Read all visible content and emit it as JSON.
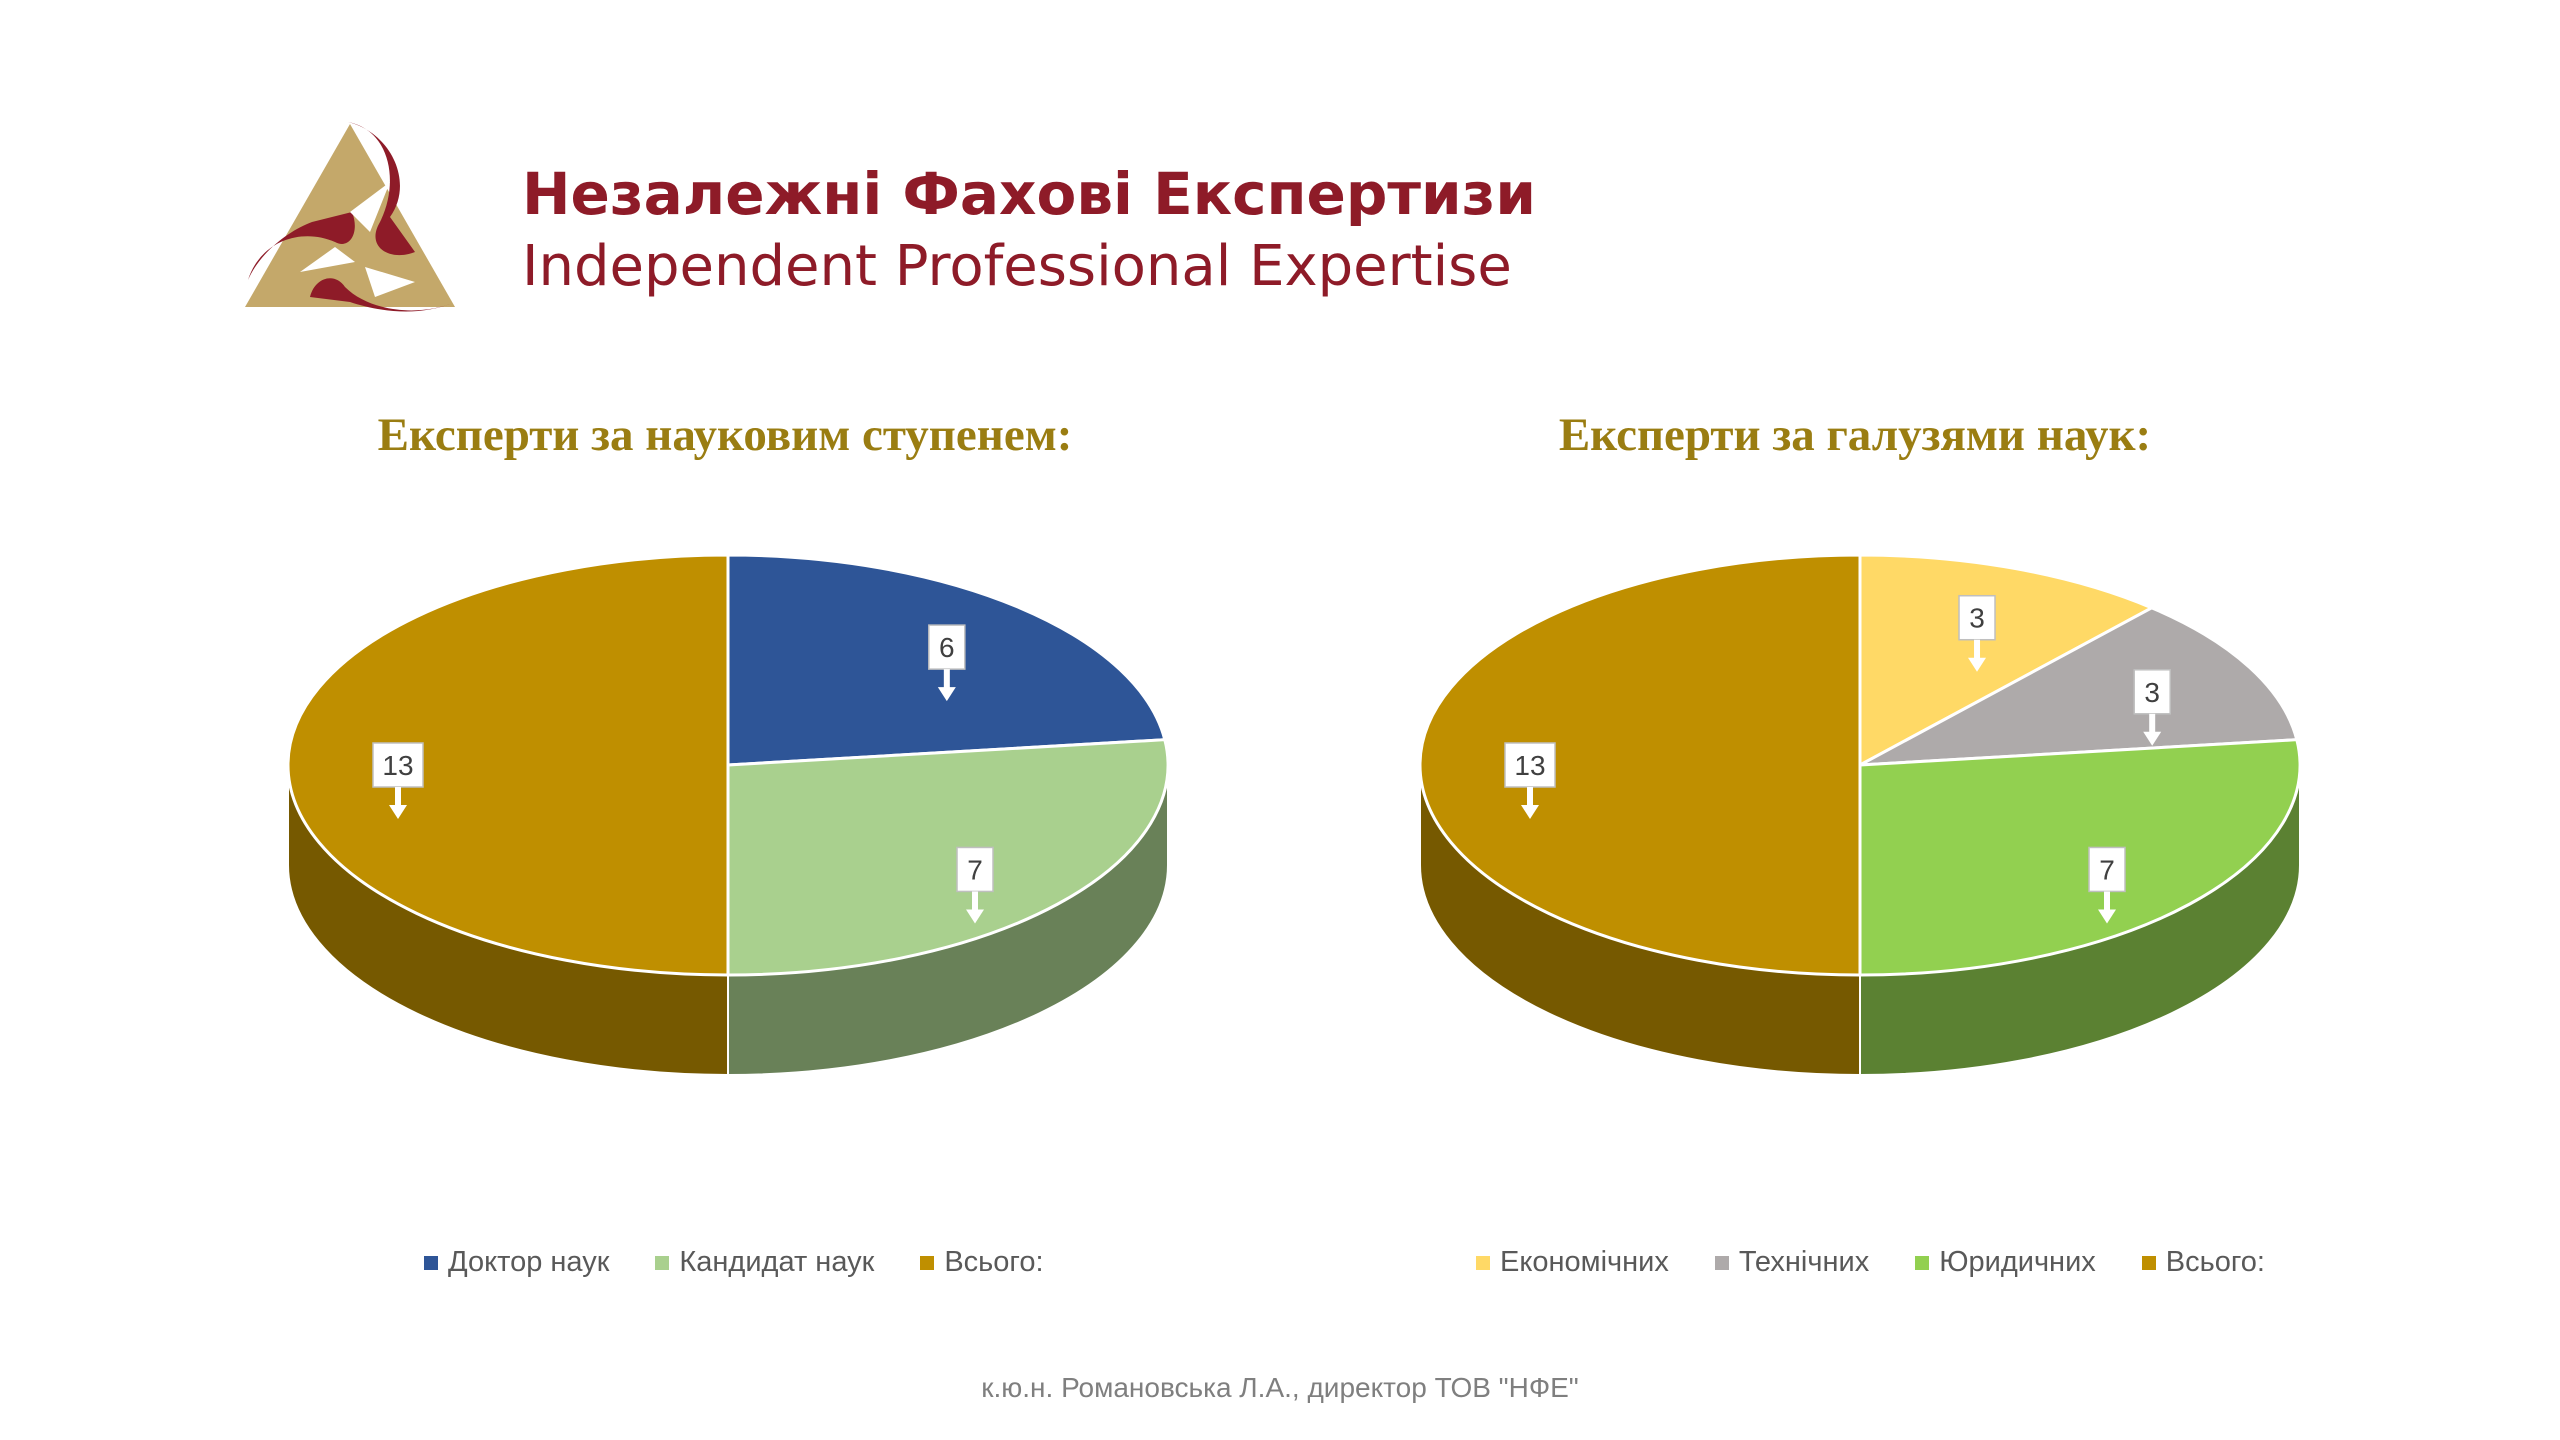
{
  "header": {
    "brand_ua": "Незалежні Фахові Експертизи",
    "brand_en": "Independent Professional Expertise",
    "logo_colors": {
      "maroon": "#8e1b28",
      "gold": "#c4a86a"
    }
  },
  "chart_data": [
    {
      "type": "pie",
      "title": "Експерти за науковим ступенем:",
      "categories": [
        "Доктор наук",
        "Кандидат наук",
        "Всього:"
      ],
      "values": [
        6,
        7,
        13
      ],
      "colors": [
        "#2e5597",
        "#a9d08e",
        "#bf8f00"
      ],
      "data_labels": [
        "6",
        "7",
        "13"
      ],
      "legend_position": "bottom",
      "style": "3d"
    },
    {
      "type": "pie",
      "title": "Експерти за галузями наук:",
      "categories": [
        "Економічних",
        "Технічних",
        "Юридичних",
        "Всього:"
      ],
      "values": [
        3,
        3,
        7,
        13
      ],
      "colors": [
        "#ffd966",
        "#aeaaaa",
        "#92d050",
        "#bf8f00"
      ],
      "data_labels": [
        "3",
        "3",
        "7",
        "13"
      ],
      "legend_position": "bottom",
      "style": "3d"
    }
  ],
  "footer": {
    "text": "к.ю.н. Романовська Л.А., директор ТОВ \"НФЕ\""
  }
}
